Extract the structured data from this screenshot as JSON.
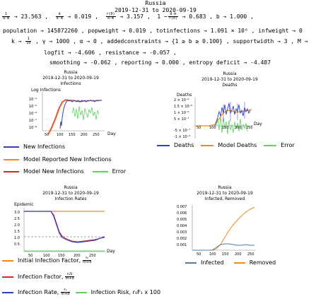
{
  "header": {
    "country": "Russia",
    "date_range": "2019-12-31 to 2020-09-19"
  },
  "params": {
    "l1_c": "→ 23.563 ,",
    "l1_d": "→ 0.019 ,",
    "l1_e": "→ 3.157 ,",
    "l1_f": "→ 0.683 ,  b → 1.000 ,",
    "l2": "population → 145872260 ,  popweight → 0.019 ,  totinfections → 1.091 × 10⁶ ,  infweight → 0",
    "l3_a": "k →",
    "l3_b": ", γ → 1000 ,  α → 0 ,  addedconstraints → {1 ≥ b ≥ 0.100} ,  supportwidth → 3 ,  M →",
    "l4": "logfit → -4.606 ,  resistance → -0.057 ,",
    "l5": "smoothing → -0.062 ,  reporting → 0.000 ,  entropy deficit → -4.487"
  },
  "plot_infections": {
    "title": "Russia",
    "subtitle": "2019-12-31 to 2020-09-19",
    "subtitle2": "Infections",
    "ylabel": "Log Infections",
    "xlabel": "Day",
    "yticks": [
      "10⁻⁴",
      "10⁻⁵",
      "10⁻⁶",
      "10⁻⁷",
      "10⁻⁸"
    ],
    "xticks": [
      "50",
      "100",
      "150",
      "200",
      "250"
    ],
    "legend": [
      "New Infections",
      "Model Reported New Infections",
      "Model New Infections",
      "Error"
    ]
  },
  "plot_deaths": {
    "title": "Russia",
    "subtitle": "2019-12-31 to 2020-09-19",
    "subtitle2": "Deaths",
    "ylabel": "Deaths",
    "xlabel": "Day",
    "yticks": [
      "2 × 10⁻⁶",
      "1.5 × 10⁻⁶",
      "1 × 10⁻⁶",
      "5 × 10⁻⁷",
      "-5 × 10⁻⁷",
      "-1 × 10⁻⁶"
    ],
    "xticks": [
      "50",
      "100",
      "150",
      "200",
      "250"
    ],
    "legend": [
      "Deaths",
      "Model Deaths",
      "Error"
    ]
  },
  "plot_rates": {
    "title": "Russia",
    "subtitle": "2019-12-31 to 2020-09-19",
    "subtitle2": "Infection Rates",
    "ylabel": "Epidemic",
    "xlabel": "Day",
    "yticks": [
      "3.0",
      "2.5",
      "2.0",
      "1.5",
      "1.0",
      "0.5"
    ],
    "xticks": [
      "50",
      "100",
      "150",
      "200",
      "250"
    ],
    "legend": [
      "Initial Infection Factor,",
      "Infection Factor,",
      "Infection Rate,",
      "Infection Risk, r₀F₁ x 100"
    ]
  },
  "plot_infected": {
    "title": "Russia",
    "subtitle": "2019-12-31 to 2020-09-19",
    "subtitle2": "Infected, Removed",
    "yticks": [
      "0.007",
      "0.006",
      "0.005",
      "0.004",
      "0.003",
      "0.002",
      "0.001"
    ],
    "xticks": [
      "50",
      "100",
      "150",
      "200",
      "250"
    ],
    "legend": [
      "Infected",
      "Removed"
    ]
  },
  "colors": {
    "blue": "#2f3fbf",
    "orange": "#ef8a1b",
    "red": "#d62a2a",
    "green": "#5fd35f",
    "steel": "#4f7fa8",
    "gray": "#888888"
  }
}
